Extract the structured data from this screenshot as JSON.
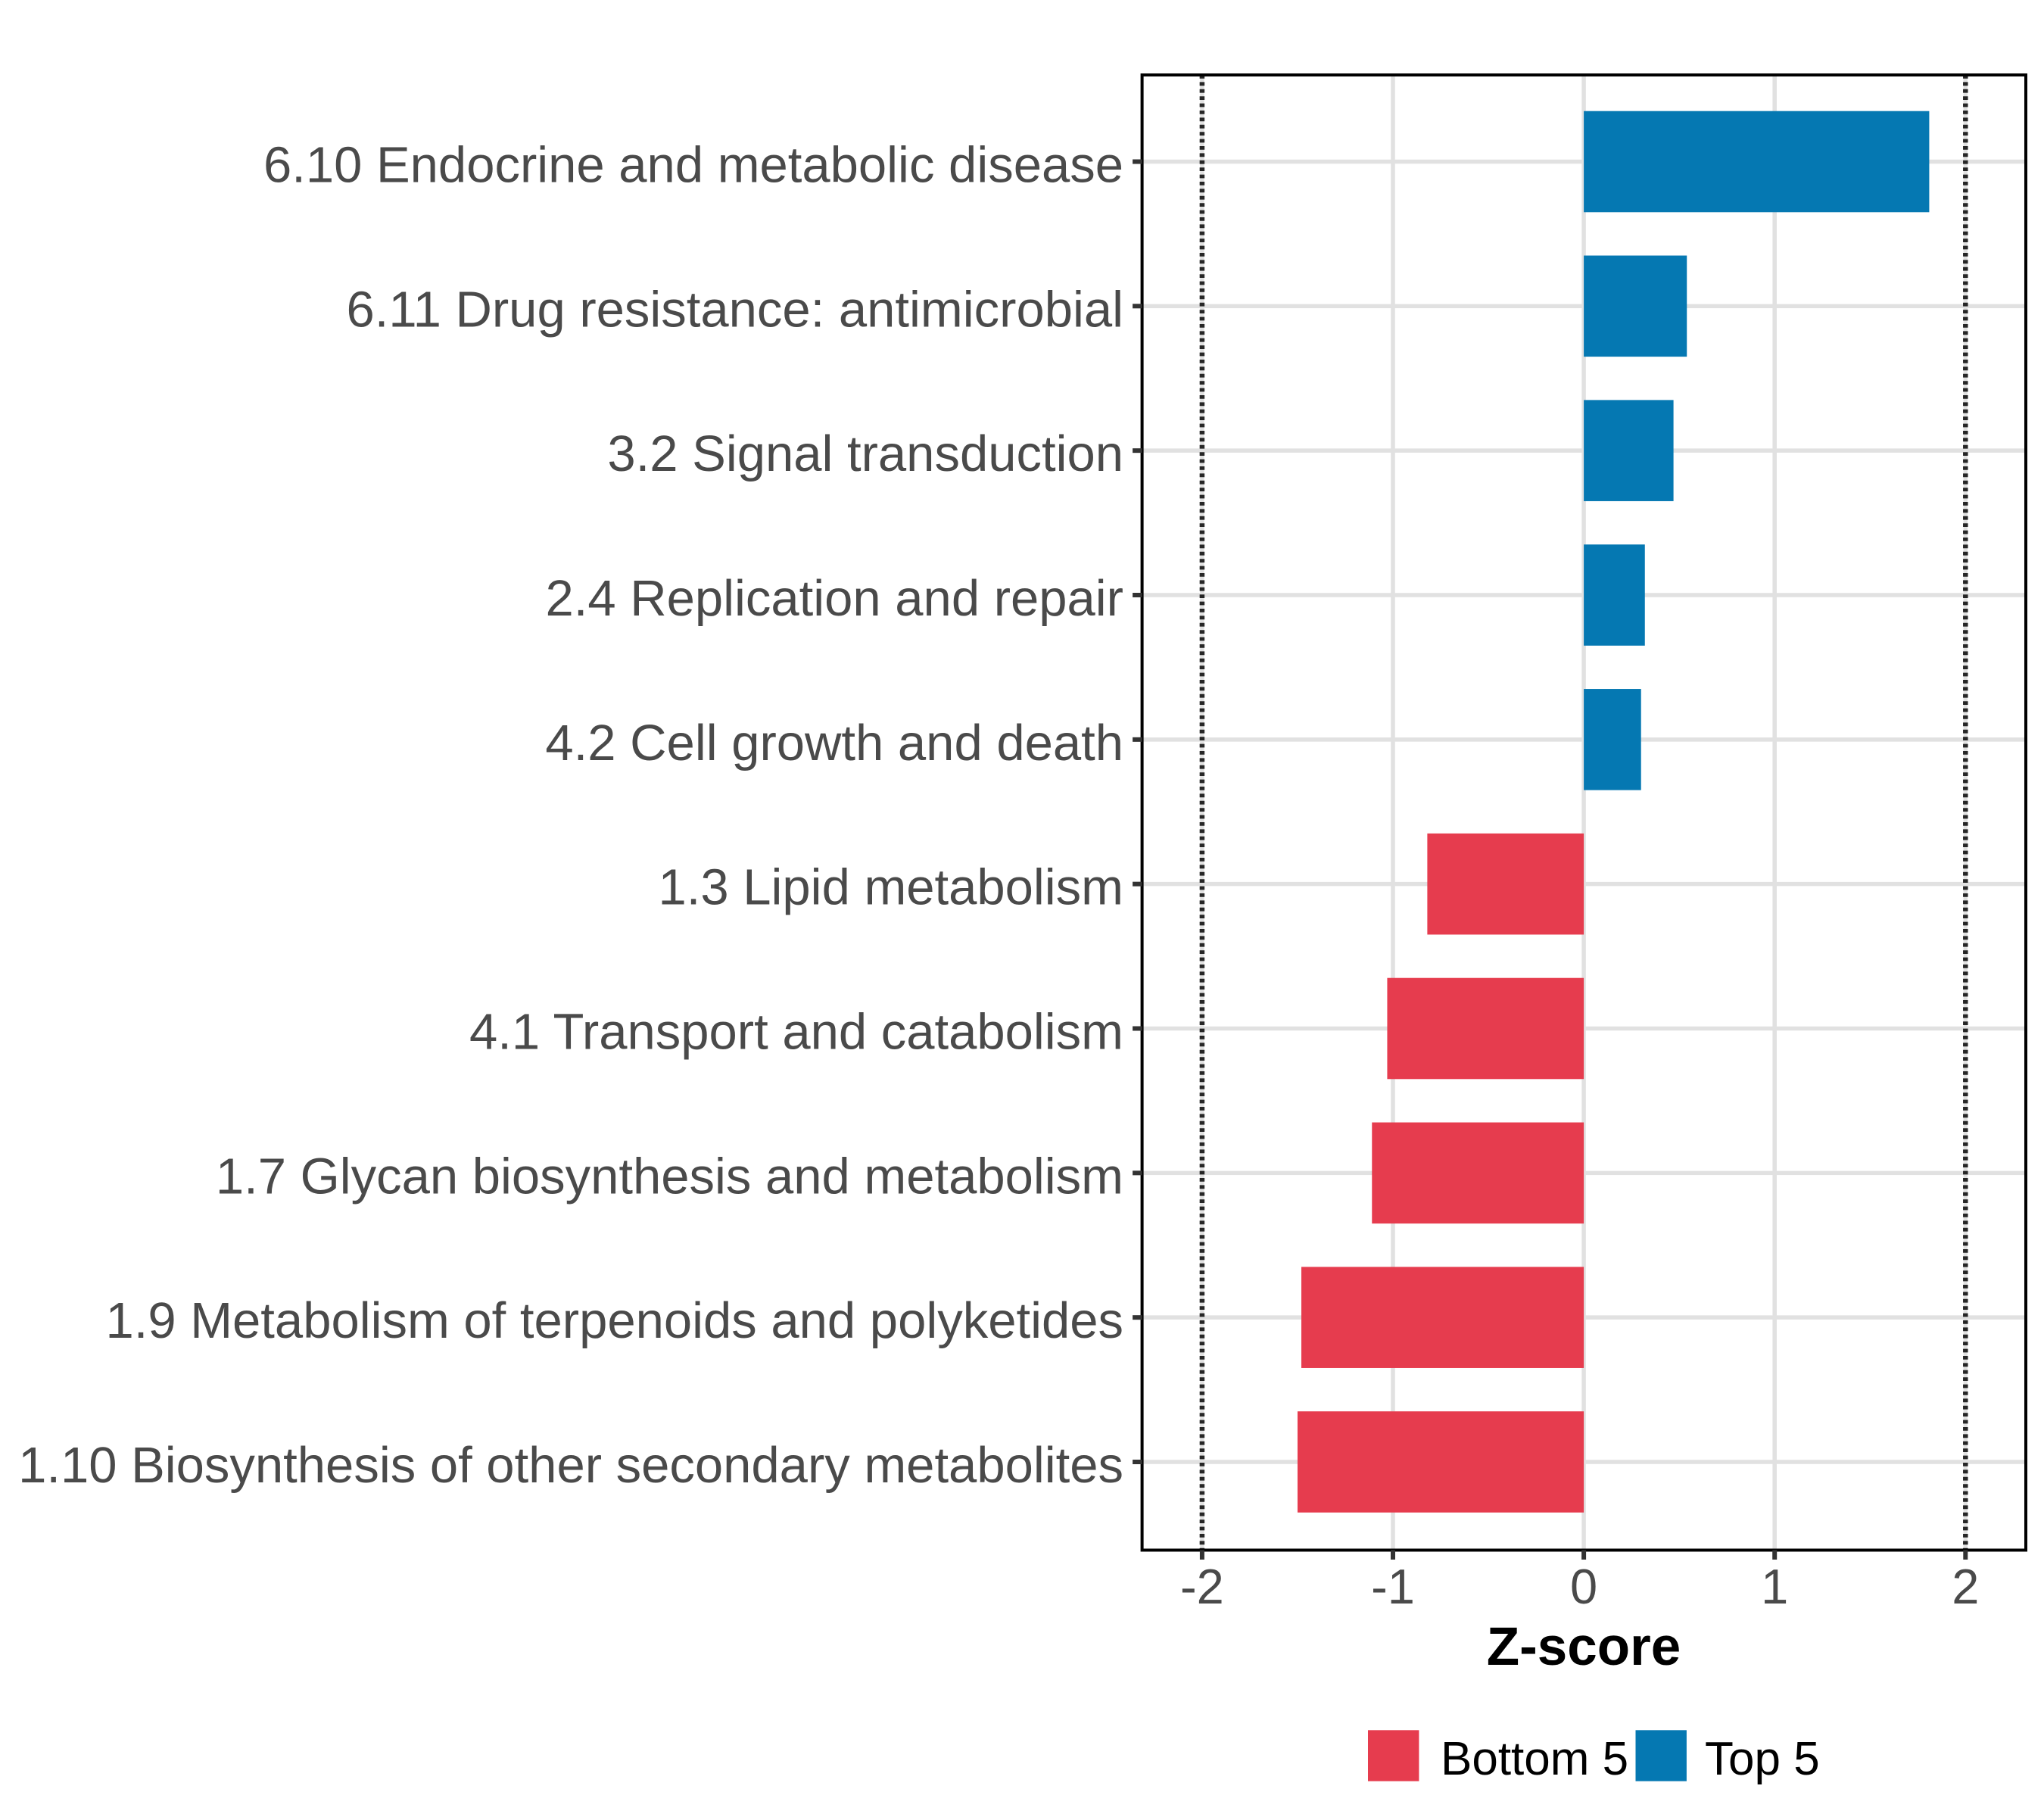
{
  "chart_data": {
    "type": "bar",
    "orientation": "horizontal",
    "title": "",
    "xlabel": "Z-score",
    "ylabel": "",
    "categories": [
      "6.10 Endocrine and metabolic disease",
      "6.11 Drug resistance: antimicrobial",
      "3.2 Signal transduction",
      "2.4 Replication and repair",
      "4.2 Cell growth and death",
      "1.3 Lipid metabolism",
      "4.1 Transport and catabolism",
      "1.7 Glycan biosynthesis and metabolism",
      "1.9 Metabolism of terpenoids and polyketides",
      "1.10 Biosynthesis of other secondary metabolites"
    ],
    "values": [
      1.81,
      0.54,
      0.47,
      0.32,
      0.3,
      -0.82,
      -1.03,
      -1.11,
      -1.48,
      -1.5
    ],
    "groups": [
      "Top 5",
      "Top 5",
      "Top 5",
      "Top 5",
      "Top 5",
      "Bottom 5",
      "Bottom 5",
      "Bottom 5",
      "Bottom 5",
      "Bottom 5"
    ],
    "series": [
      {
        "name": "Bottom 5",
        "color": "#E63C4E"
      },
      {
        "name": "Top 5",
        "color": "#0578B2"
      }
    ],
    "xlim": [
      -2.32,
      2.32
    ],
    "x_ticks": [
      "-2",
      "-1",
      "0",
      "1",
      "2"
    ],
    "x_tick_values": [
      -2,
      -1,
      0,
      1,
      2
    ],
    "reference_lines": [
      -2,
      2
    ],
    "reference_line_style": "dotted",
    "grid": true,
    "gridline_color": "#E1E1E1",
    "tick_color": "#333333",
    "axis_text_color": "#4a4a4a",
    "panel_border_color": "#000000",
    "legend_position": "bottom-right",
    "bar_width_fraction": 0.7
  },
  "legend": {
    "items": [
      {
        "label": "Bottom 5",
        "color": "#E63C4E"
      },
      {
        "label": "Top 5",
        "color": "#0578B2"
      }
    ]
  }
}
